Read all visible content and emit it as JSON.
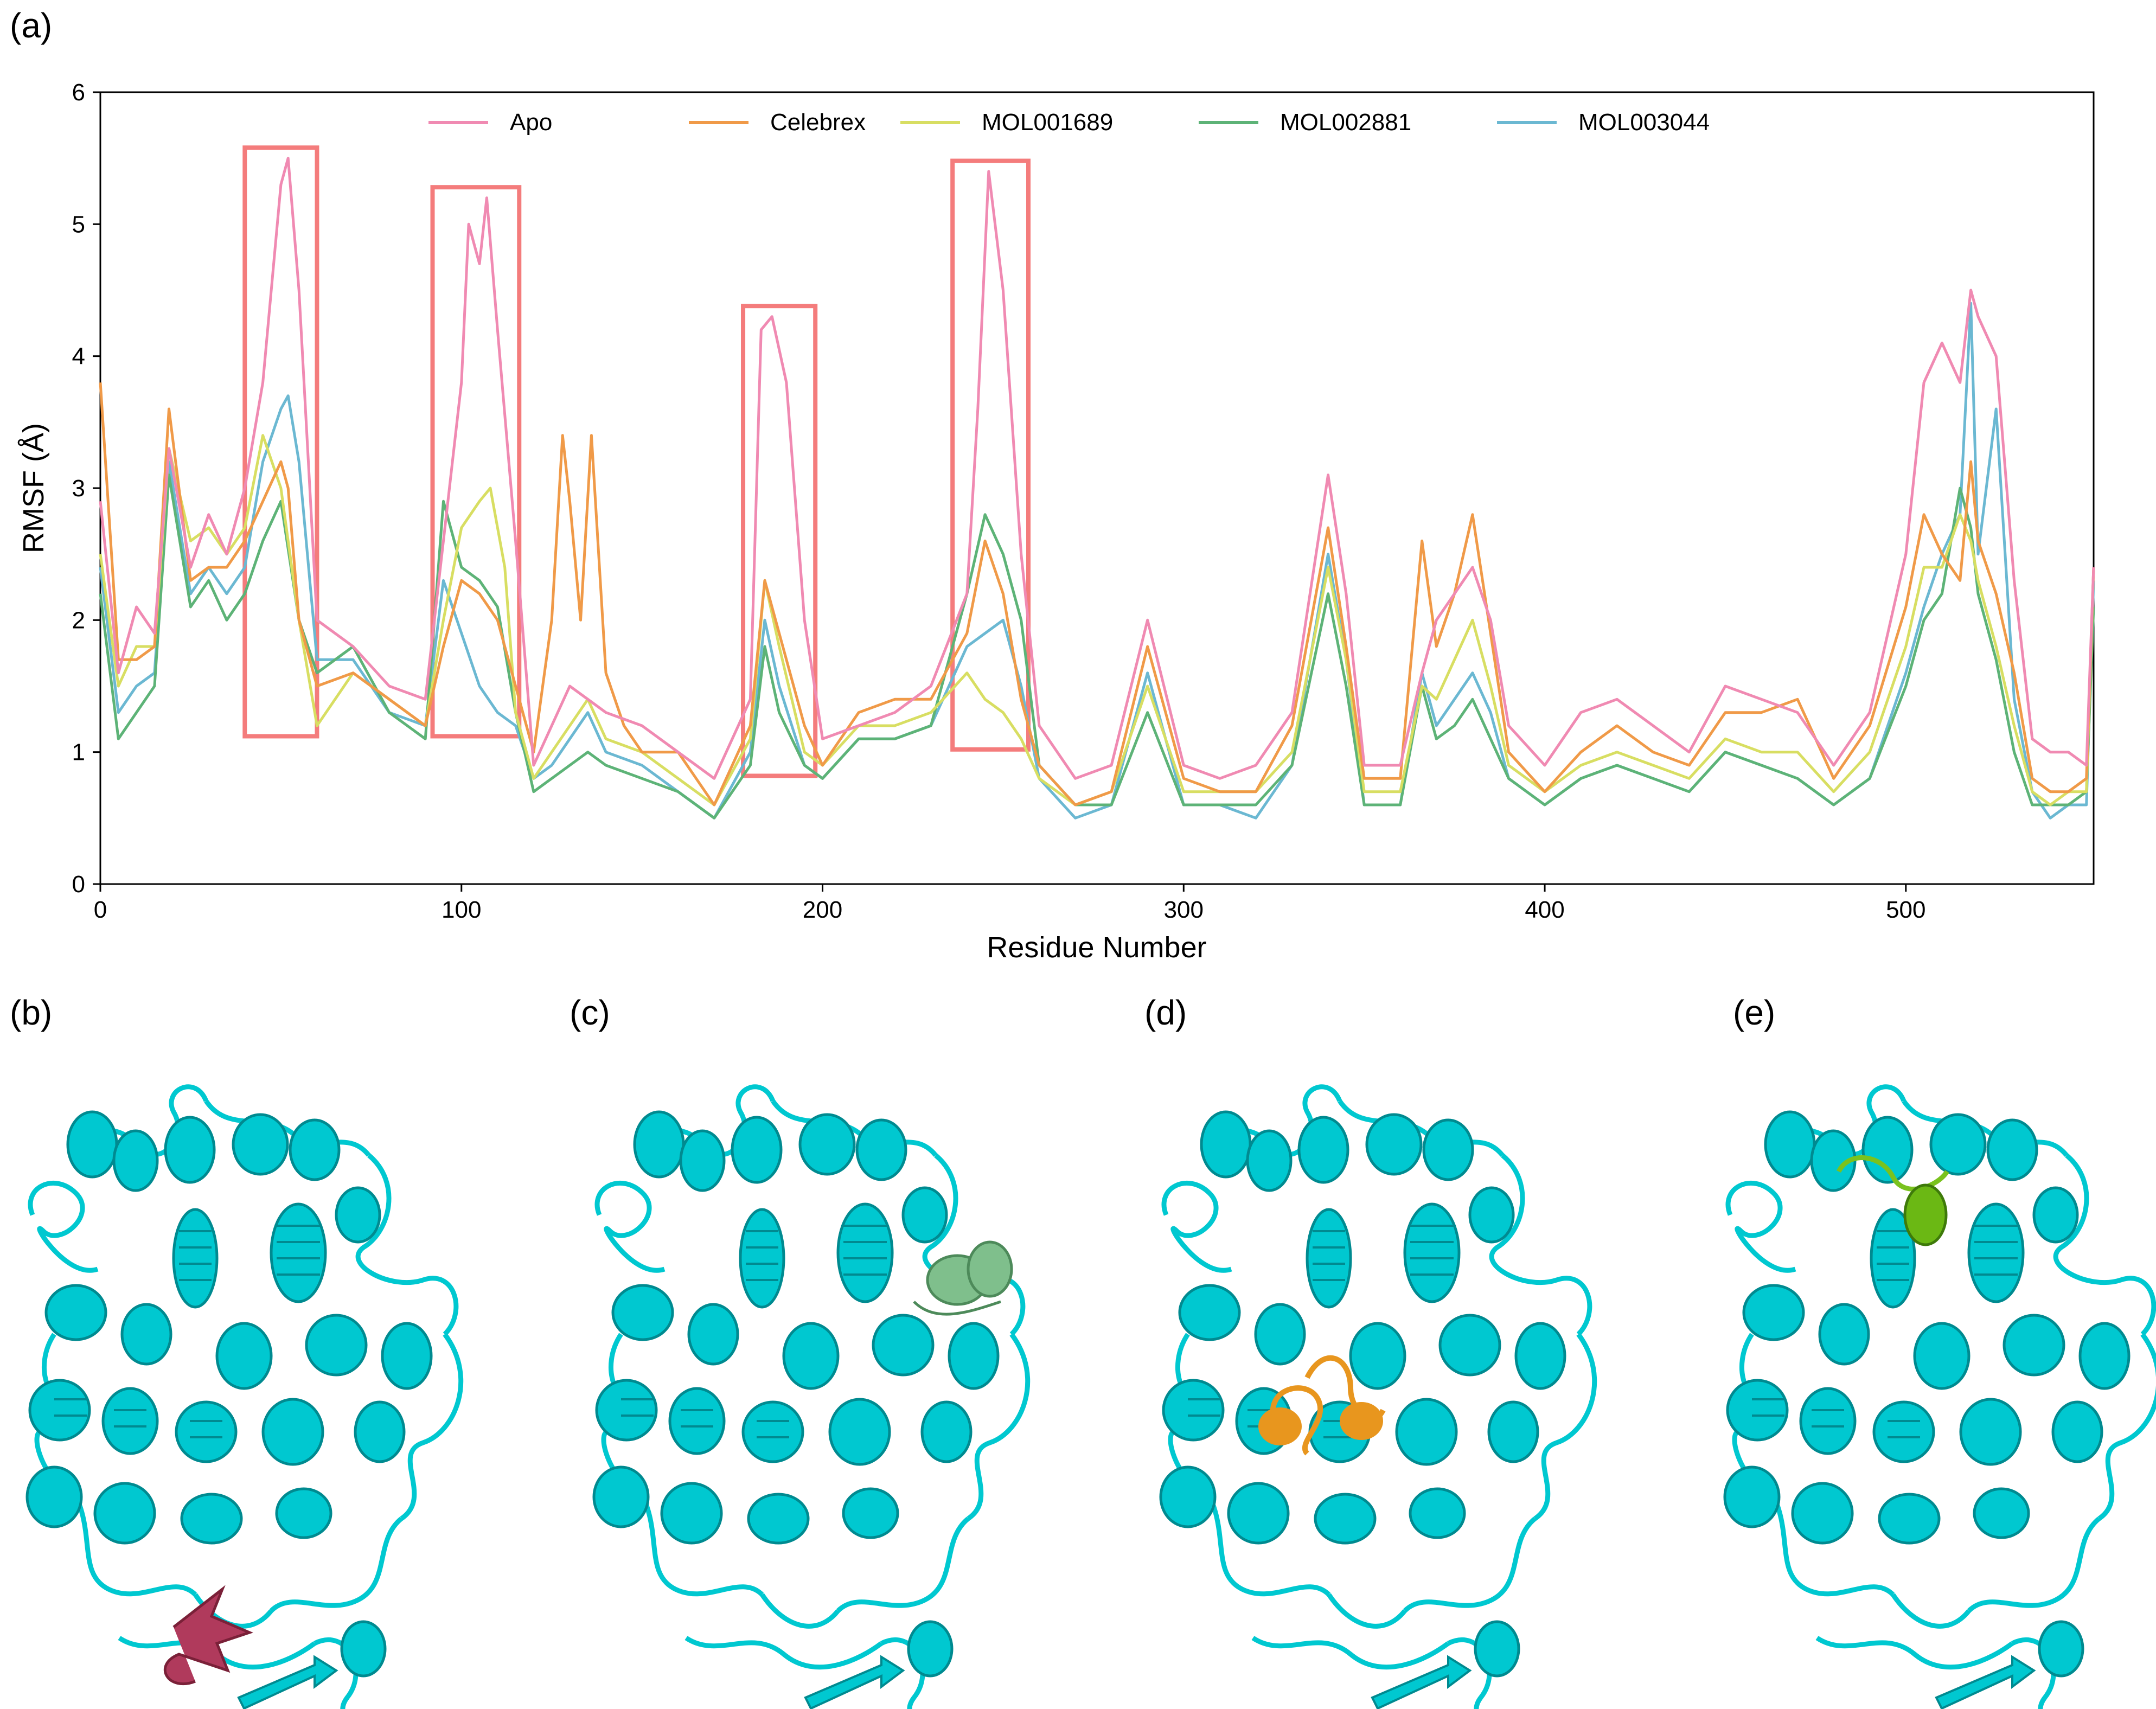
{
  "figure": {
    "panels": {
      "a": "(a)",
      "b": "(b)",
      "c": "(c)",
      "d": "(d)",
      "e": "(e)"
    }
  },
  "chart_data": {
    "type": "line",
    "title": "",
    "xlabel": "Residue Number",
    "ylabel": "RMSF (Å)",
    "xlim": [
      0,
      552
    ],
    "ylim": [
      0,
      6
    ],
    "xticks": [
      0,
      100,
      200,
      300,
      400,
      500
    ],
    "yticks": [
      0,
      1,
      2,
      3,
      4,
      5,
      6
    ],
    "legend_position": "top",
    "highlight_regions_residue_range": [
      [
        40,
        60
      ],
      [
        92,
        116
      ],
      [
        178,
        198
      ],
      [
        236,
        257
      ]
    ],
    "highlight_color": "#f47c7c",
    "series": [
      {
        "name": "Apo",
        "color": "#f08ab2",
        "x": [
          0,
          5,
          10,
          15,
          19,
          25,
          30,
          35,
          40,
          45,
          50,
          52,
          55,
          60,
          70,
          80,
          90,
          95,
          100,
          102,
          105,
          107,
          110,
          115,
          120,
          125,
          130,
          135,
          140,
          150,
          160,
          170,
          180,
          183,
          186,
          190,
          195,
          200,
          210,
          220,
          230,
          240,
          243,
          246,
          250,
          255,
          260,
          270,
          280,
          290,
          300,
          310,
          320,
          330,
          340,
          345,
          350,
          360,
          366,
          370,
          375,
          380,
          385,
          390,
          400,
          410,
          420,
          430,
          440,
          450,
          460,
          470,
          480,
          490,
          500,
          505,
          510,
          515,
          518,
          520,
          525,
          530,
          535,
          540,
          545,
          550,
          552
        ],
        "y": [
          2.9,
          1.6,
          2.1,
          1.9,
          3.3,
          2.4,
          2.8,
          2.5,
          3.0,
          3.8,
          5.3,
          5.5,
          4.5,
          2.0,
          1.8,
          1.5,
          1.4,
          2.6,
          3.8,
          5.0,
          4.7,
          5.2,
          4.2,
          2.6,
          0.9,
          1.2,
          1.5,
          1.4,
          1.3,
          1.2,
          1.0,
          0.8,
          1.4,
          4.2,
          4.3,
          3.8,
          2.0,
          1.1,
          1.2,
          1.3,
          1.5,
          2.2,
          3.6,
          5.4,
          4.5,
          2.5,
          1.2,
          0.8,
          0.9,
          2.0,
          0.9,
          0.8,
          0.9,
          1.3,
          3.1,
          2.2,
          0.9,
          0.9,
          1.6,
          2.0,
          2.2,
          2.4,
          2.0,
          1.2,
          0.9,
          1.3,
          1.4,
          1.2,
          1.0,
          1.5,
          1.4,
          1.3,
          0.9,
          1.3,
          2.5,
          3.8,
          4.1,
          3.8,
          4.5,
          4.3,
          4.0,
          2.3,
          1.1,
          1.0,
          1.0,
          0.9,
          2.4
        ]
      },
      {
        "name": "Celebrex",
        "color": "#f09a48",
        "x": [
          0,
          5,
          10,
          15,
          19,
          25,
          30,
          35,
          40,
          45,
          50,
          52,
          55,
          60,
          70,
          80,
          90,
          95,
          100,
          105,
          110,
          115,
          120,
          125,
          128,
          130,
          133,
          136,
          140,
          145,
          150,
          160,
          170,
          180,
          184,
          188,
          195,
          200,
          210,
          220,
          230,
          240,
          245,
          250,
          255,
          260,
          270,
          280,
          290,
          300,
          310,
          320,
          330,
          340,
          345,
          350,
          360,
          366,
          370,
          375,
          380,
          385,
          390,
          400,
          410,
          420,
          430,
          440,
          450,
          460,
          470,
          480,
          490,
          500,
          505,
          510,
          515,
          518,
          520,
          525,
          530,
          535,
          540,
          545,
          550,
          552
        ],
        "y": [
          3.8,
          1.7,
          1.7,
          1.8,
          3.6,
          2.3,
          2.4,
          2.4,
          2.6,
          2.9,
          3.2,
          3.0,
          2.0,
          1.5,
          1.6,
          1.4,
          1.2,
          1.8,
          2.3,
          2.2,
          2.0,
          1.5,
          1.0,
          2.0,
          3.4,
          2.9,
          2.0,
          3.4,
          1.6,
          1.2,
          1.0,
          1.0,
          0.6,
          1.2,
          2.3,
          1.9,
          1.2,
          0.9,
          1.3,
          1.4,
          1.4,
          1.9,
          2.6,
          2.2,
          1.4,
          0.9,
          0.6,
          0.7,
          1.8,
          0.8,
          0.7,
          0.7,
          1.2,
          2.7,
          1.8,
          0.8,
          0.8,
          2.6,
          1.8,
          2.2,
          2.8,
          1.9,
          1.0,
          0.7,
          1.0,
          1.2,
          1.0,
          0.9,
          1.3,
          1.3,
          1.4,
          0.8,
          1.2,
          2.1,
          2.8,
          2.5,
          2.3,
          3.2,
          2.6,
          2.2,
          1.6,
          0.8,
          0.7,
          0.7,
          0.8,
          2.4
        ]
      },
      {
        "name": "MOL001689",
        "color": "#d8de62",
        "x": [
          0,
          5,
          10,
          15,
          19,
          25,
          30,
          35,
          40,
          45,
          50,
          55,
          60,
          70,
          80,
          90,
          95,
          100,
          105,
          108,
          112,
          115,
          120,
          125,
          130,
          135,
          140,
          150,
          160,
          170,
          180,
          184,
          188,
          195,
          200,
          210,
          220,
          230,
          240,
          245,
          250,
          255,
          260,
          270,
          280,
          290,
          300,
          310,
          320,
          330,
          340,
          345,
          350,
          360,
          366,
          370,
          375,
          380,
          385,
          390,
          400,
          410,
          420,
          430,
          440,
          450,
          460,
          470,
          480,
          490,
          500,
          505,
          510,
          515,
          518,
          520,
          525,
          530,
          535,
          540,
          545,
          550,
          552
        ],
        "y": [
          2.5,
          1.5,
          1.8,
          1.8,
          3.3,
          2.6,
          2.7,
          2.5,
          2.7,
          3.4,
          3.0,
          2.0,
          1.2,
          1.6,
          1.4,
          1.2,
          2.0,
          2.7,
          2.9,
          3.0,
          2.4,
          1.3,
          0.8,
          1.0,
          1.2,
          1.4,
          1.1,
          1.0,
          0.8,
          0.6,
          1.1,
          2.3,
          1.8,
          1.0,
          0.9,
          1.2,
          1.2,
          1.3,
          1.6,
          1.4,
          1.3,
          1.1,
          0.8,
          0.6,
          0.7,
          1.5,
          0.7,
          0.7,
          0.7,
          1.0,
          2.4,
          1.7,
          0.7,
          0.7,
          1.5,
          1.4,
          1.7,
          2.0,
          1.5,
          0.9,
          0.7,
          0.9,
          1.0,
          0.9,
          0.8,
          1.1,
          1.0,
          1.0,
          0.7,
          1.0,
          1.8,
          2.4,
          2.4,
          2.8,
          2.6,
          2.3,
          1.8,
          1.2,
          0.7,
          0.6,
          0.7,
          0.7,
          2.4
        ]
      },
      {
        "name": "MOL002881",
        "color": "#5db377",
        "x": [
          0,
          5,
          10,
          15,
          19,
          25,
          30,
          35,
          40,
          45,
          50,
          55,
          60,
          70,
          80,
          90,
          95,
          100,
          105,
          110,
          115,
          120,
          125,
          130,
          135,
          140,
          150,
          160,
          170,
          180,
          184,
          188,
          195,
          200,
          210,
          220,
          230,
          240,
          245,
          250,
          255,
          260,
          270,
          280,
          290,
          300,
          310,
          320,
          330,
          340,
          345,
          350,
          360,
          366,
          370,
          375,
          380,
          385,
          390,
          400,
          410,
          420,
          430,
          440,
          450,
          460,
          470,
          480,
          490,
          500,
          505,
          510,
          515,
          518,
          520,
          525,
          530,
          535,
          540,
          545,
          550,
          552
        ],
        "y": [
          2.2,
          1.1,
          1.3,
          1.5,
          3.1,
          2.1,
          2.3,
          2.0,
          2.2,
          2.6,
          2.9,
          2.0,
          1.6,
          1.8,
          1.3,
          1.1,
          2.9,
          2.4,
          2.3,
          2.1,
          1.3,
          0.7,
          0.8,
          0.9,
          1.0,
          0.9,
          0.8,
          0.7,
          0.5,
          0.9,
          1.8,
          1.3,
          0.9,
          0.8,
          1.1,
          1.1,
          1.2,
          2.2,
          2.8,
          2.5,
          2.0,
          0.9,
          0.6,
          0.6,
          1.3,
          0.6,
          0.6,
          0.6,
          0.9,
          2.2,
          1.5,
          0.6,
          0.6,
          1.5,
          1.1,
          1.2,
          1.4,
          1.1,
          0.8,
          0.6,
          0.8,
          0.9,
          0.8,
          0.7,
          1.0,
          0.9,
          0.8,
          0.6,
          0.8,
          1.5,
          2.0,
          2.2,
          3.0,
          2.7,
          2.2,
          1.7,
          1.0,
          0.6,
          0.6,
          0.6,
          0.7,
          2.1
        ]
      },
      {
        "name": "MOL003044",
        "color": "#6bb8d2",
        "x": [
          0,
          5,
          10,
          15,
          19,
          25,
          30,
          35,
          40,
          45,
          50,
          52,
          55,
          60,
          70,
          80,
          90,
          95,
          100,
          105,
          110,
          115,
          120,
          125,
          130,
          135,
          140,
          150,
          160,
          170,
          180,
          184,
          188,
          195,
          200,
          210,
          220,
          230,
          240,
          245,
          250,
          255,
          260,
          270,
          280,
          290,
          300,
          310,
          320,
          330,
          340,
          345,
          350,
          360,
          366,
          370,
          375,
          380,
          385,
          390,
          400,
          410,
          420,
          430,
          440,
          450,
          460,
          470,
          480,
          490,
          500,
          505,
          510,
          515,
          518,
          520,
          525,
          530,
          535,
          540,
          545,
          550,
          552
        ],
        "y": [
          2.4,
          1.3,
          1.5,
          1.6,
          3.2,
          2.2,
          2.4,
          2.2,
          2.4,
          3.2,
          3.6,
          3.7,
          3.2,
          1.7,
          1.7,
          1.3,
          1.2,
          2.3,
          1.9,
          1.5,
          1.3,
          1.2,
          0.8,
          0.9,
          1.1,
          1.3,
          1.0,
          0.9,
          0.7,
          0.5,
          1.0,
          2.0,
          1.5,
          0.9,
          0.8,
          1.1,
          1.1,
          1.2,
          1.8,
          1.9,
          2.0,
          1.5,
          0.8,
          0.5,
          0.6,
          1.6,
          0.6,
          0.6,
          0.5,
          0.9,
          2.5,
          1.7,
          0.6,
          0.6,
          1.6,
          1.2,
          1.4,
          1.6,
          1.3,
          0.8,
          0.6,
          0.8,
          0.9,
          0.8,
          0.7,
          1.0,
          0.9,
          0.8,
          0.6,
          0.8,
          1.6,
          2.1,
          2.5,
          2.8,
          4.4,
          2.5,
          3.6,
          1.4,
          0.7,
          0.5,
          0.6,
          0.6,
          2.3
        ]
      }
    ]
  }
}
